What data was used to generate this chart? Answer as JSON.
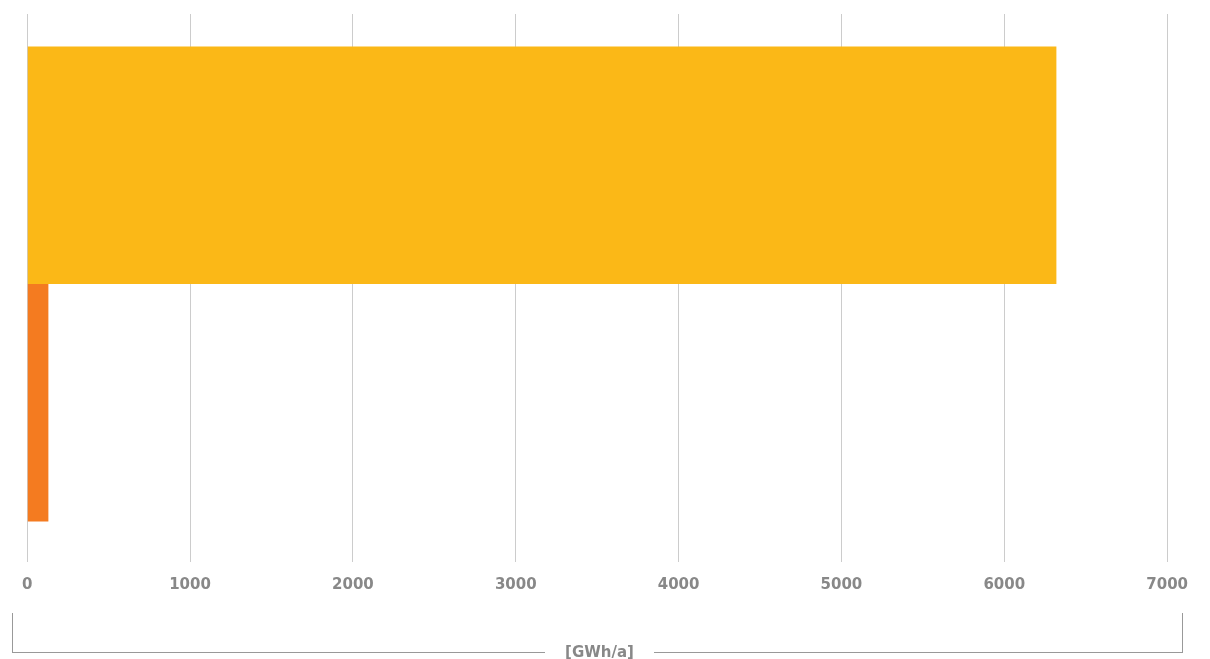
{
  "chart_data": {
    "type": "bar",
    "orientation": "horizontal",
    "categories": [
      null
    ],
    "series": [
      {
        "color": "#fbb817",
        "values": [
          6320
        ]
      },
      {
        "color": "#f47b20",
        "values": [
          130
        ]
      }
    ],
    "xlabel": "[GWh/a]",
    "xlim": [
      0,
      7000
    ],
    "xticks": [
      0,
      1000,
      2000,
      3000,
      4000,
      5000,
      6000,
      7000
    ],
    "grid": "x",
    "legend": false
  }
}
